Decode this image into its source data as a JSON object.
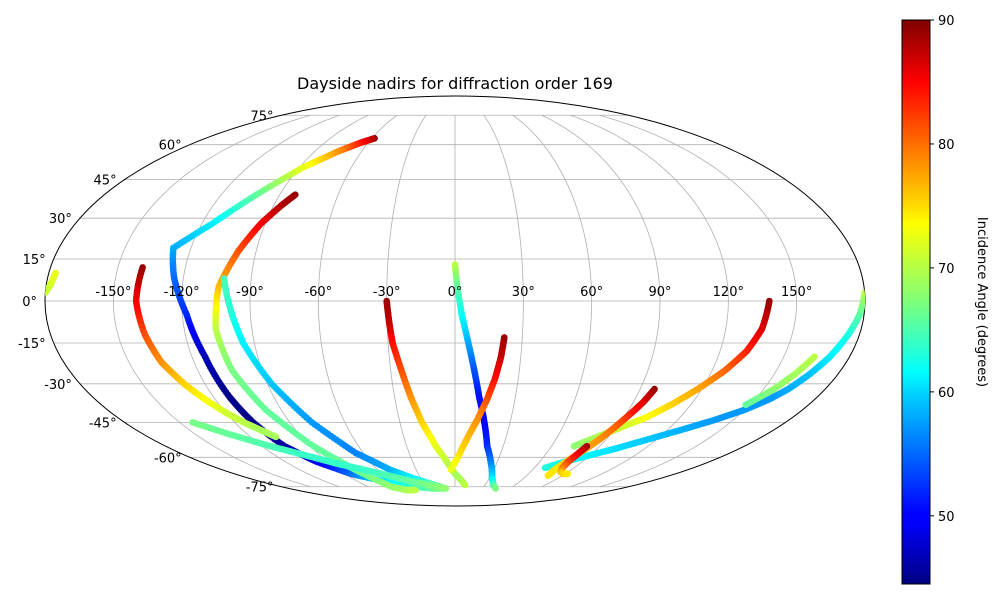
{
  "chart_data": {
    "type": "scatter",
    "projection": "mollweide",
    "title": "Dayside nadirs for diffraction order 169",
    "grid": true,
    "lon_ticks": [
      -150,
      -120,
      -90,
      -60,
      -30,
      0,
      30,
      60,
      90,
      120,
      150
    ],
    "lon_tick_labels": [
      "-150°",
      "-120°",
      "-90°",
      "-60°",
      "-30°",
      "0°",
      "30°",
      "60°",
      "90°",
      "120°",
      "150°"
    ],
    "lat_ticks": [
      -75,
      -60,
      -45,
      -30,
      -15,
      0,
      15,
      30,
      45,
      60,
      75
    ],
    "lat_tick_labels": [
      "-75°",
      "-60°",
      "-45°",
      "-30°",
      "-15°",
      "0°",
      "15°",
      "30°",
      "45°",
      "60°",
      "75°"
    ],
    "colorbar": {
      "label": "Incidence Angle (degrees)",
      "colormap": "jet",
      "min": 44.5,
      "max": 90,
      "ticks": [
        50,
        60,
        70,
        80,
        90
      ],
      "tick_labels": [
        "50",
        "60",
        "70",
        "80",
        "90"
      ]
    },
    "series": [
      {
        "lon": [
          -58,
          -65,
          -75,
          -88,
          -102,
          -115,
          -128
        ],
        "lat": [
          63,
          61,
          57,
          50,
          39,
          28,
          19
        ],
        "incidence": [
          89,
          84,
          78,
          72,
          66,
          61,
          58
        ]
      },
      {
        "lon": [
          -128,
          -124,
          -118,
          -114,
          -112,
          -110,
          -106,
          -98,
          -85,
          -70,
          -55,
          -40,
          -25,
          -10
        ],
        "lat": [
          19,
          8,
          -5,
          -20,
          -35,
          -45,
          -55,
          -62,
          -68,
          -71,
          -74,
          -75,
          -76,
          -76
        ],
        "incidence": [
          58,
          55,
          52,
          47,
          45,
          45,
          46,
          49,
          55,
          60,
          62,
          64,
          66,
          67
        ]
      },
      {
        "lon": [
          -82,
          -86,
          -92,
          -98,
          -104,
          -106,
          -104,
          -98,
          -88,
          -78,
          -72,
          -66,
          -55,
          -45
        ],
        "lat": [
          39,
          35,
          28,
          18,
          5,
          -10,
          -25,
          -40,
          -55,
          -65,
          -70,
          -75,
          -77,
          -77
        ],
        "incidence": [
          89,
          88,
          85,
          81,
          76,
          70,
          67,
          66,
          66,
          66,
          67,
          68,
          69,
          70
        ]
      },
      {
        "lon": [
          -102,
          -98,
          -95,
          -88,
          -78,
          -65,
          -50,
          -38,
          -25,
          -15
        ],
        "lat": [
          8,
          -5,
          -15,
          -30,
          -45,
          -58,
          -66,
          -70,
          -73,
          -75
        ],
        "incidence": [
          65,
          63,
          61,
          59,
          57,
          56,
          58,
          61,
          64,
          66
        ]
      },
      {
        "lon": [
          -139,
          -140,
          -138,
          -135,
          -130,
          -125,
          -120,
          -115,
          -110,
          -105
        ],
        "lat": [
          12,
          0,
          -12,
          -22,
          -30,
          -36,
          -41,
          -45,
          -48,
          -51
        ],
        "incidence": [
          89,
          85,
          81,
          78,
          75,
          73,
          71,
          70,
          69,
          69
        ]
      },
      {
        "lon": [
          -143,
          -130,
          -115,
          -100,
          -85,
          -70,
          -55,
          -40,
          -25,
          -10
        ],
        "lat": [
          -45,
          -50,
          -55,
          -59,
          -63,
          -66,
          -69,
          -72,
          -74,
          -76
        ],
        "incidence": [
          67,
          66,
          65,
          64,
          64,
          64,
          65,
          66,
          67,
          68
        ]
      },
      {
        "lon": [
          -180,
          -178,
          -177
        ],
        "lat": [
          3,
          6,
          10
        ],
        "incidence": [
          70,
          71,
          72
        ]
      },
      {
        "lon": [
          -30,
          -29,
          -28,
          -25,
          -22,
          -18,
          -12,
          -5,
          0,
          5,
          10
        ],
        "lat": [
          0,
          -8,
          -15,
          -25,
          -35,
          -45,
          -55,
          -63,
          -68,
          -71,
          -74
        ],
        "incidence": [
          89,
          87,
          84,
          81,
          78,
          75,
          72,
          70,
          69,
          69,
          70
        ]
      },
      {
        "lon": [
          0,
          1,
          3,
          6,
          9,
          12,
          16,
          20,
          26,
          32,
          38,
          44
        ],
        "lat": [
          13,
          5,
          -5,
          -15,
          -25,
          -35,
          -45,
          -55,
          -63,
          -70,
          -74,
          -76
        ],
        "incidence": [
          70,
          66,
          62,
          58,
          54,
          51,
          50,
          52,
          56,
          60,
          64,
          67
        ]
      },
      {
        "lon": [
          22,
          21,
          19,
          16,
          12,
          7,
          2,
          -3
        ],
        "lat": [
          -13,
          -20,
          -28,
          -36,
          -44,
          -52,
          -60,
          -66
        ],
        "incidence": [
          89,
          87,
          84,
          81,
          78,
          76,
          74,
          72
        ]
      },
      {
        "lon": [
          138,
          136,
          132,
          126,
          118,
          110,
          102,
          95,
          88,
          81,
          74
        ],
        "lat": [
          0,
          -10,
          -18,
          -25,
          -32,
          -38,
          -43,
          -46,
          -49,
          -52,
          -55
        ],
        "incidence": [
          89,
          86,
          83,
          80,
          77,
          75,
          73,
          71,
          70,
          69,
          68
        ]
      },
      {
        "lon": [
          180,
          178,
          175,
          171,
          167,
          162,
          157,
          150,
          140,
          128,
          115,
          102,
          90,
          78,
          68
        ],
        "lat": [
          3,
          -5,
          -12,
          -20,
          -26,
          -32,
          -36,
          -40,
          -44,
          -48,
          -52,
          -56,
          -59,
          -62,
          -65
        ],
        "incidence": [
          70,
          66,
          63,
          61,
          59,
          58,
          57,
          57,
          57,
          58,
          59,
          60,
          61,
          62,
          63
        ]
      },
      {
        "lon": [
          164,
          160,
          155,
          148
        ],
        "lat": [
          -20,
          -26,
          -32,
          -38
        ],
        "incidence": [
          70,
          69,
          68,
          66
        ]
      },
      {
        "lon": [
          97,
          95,
          92,
          89,
          86,
          83,
          80,
          78,
          77,
          78
        ],
        "lat": [
          -32,
          -37,
          -42,
          -47,
          -52,
          -56,
          -60,
          -63,
          -66,
          -69
        ],
        "incidence": [
          89,
          86,
          83,
          80,
          78,
          77,
          76,
          75,
          74,
          74
        ]
      },
      {
        "lon": [
          82,
          81,
          80,
          81,
          84,
          88,
          92
        ],
        "lat": [
          -55,
          -58,
          -62,
          -65,
          -67,
          -68,
          -68
        ],
        "incidence": [
          89,
          86,
          82,
          79,
          77,
          75,
          74
        ]
      }
    ]
  }
}
